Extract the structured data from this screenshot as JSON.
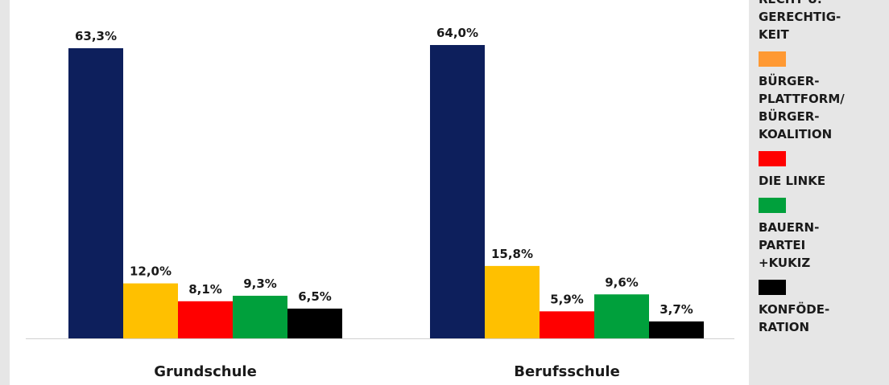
{
  "chart_data": {
    "type": "bar",
    "categories": [
      "Grundschule",
      "Berufsschule"
    ],
    "series": [
      {
        "name": "RECHT U. GERECHTIG-KEIT",
        "color": "#0d1f5c",
        "values": [
          63.3,
          64.0
        ],
        "labels": [
          "63,3%",
          "64,0%"
        ]
      },
      {
        "name": "BÜRGER-PLATTFORM/ BÜRGER-KOALITION",
        "color": "#ffc000",
        "values": [
          12.0,
          15.8
        ],
        "labels": [
          "12,0%",
          "15,8%"
        ]
      },
      {
        "name": "DIE LINKE",
        "color": "#ff0000",
        "values": [
          8.1,
          5.9
        ],
        "labels": [
          "8,1%",
          "5,9%"
        ]
      },
      {
        "name": "BAUERN-PARTEI +KUKIZ",
        "color": "#00a03c",
        "values": [
          9.3,
          9.6
        ],
        "labels": [
          "9,3%",
          "9,6%"
        ]
      },
      {
        "name": "KONFÖDE-RATION",
        "color": "#000000",
        "values": [
          6.5,
          3.7
        ],
        "labels": [
          "6,5%",
          "3,7%"
        ]
      }
    ],
    "ylim": [
      0,
      70
    ],
    "grid": false,
    "legend_position": "right"
  },
  "legend": [
    {
      "text": "RECHT U.\nGERECHTIG-\nKEIT",
      "color": "#0d1f5c",
      "show_swatch": false
    },
    {
      "text": "BÜRGER-\nPLATTFORM/\nBÜRGER-\nKOALITION",
      "color": "#ff9933",
      "show_swatch": true
    },
    {
      "text": "DIE LINKE",
      "color": "#ff0000",
      "show_swatch": true
    },
    {
      "text": "BAUERN-\nPARTEI\n+KUKIZ",
      "color": "#00a03c",
      "show_swatch": true
    },
    {
      "text": "KONFÖDE-\nRATION",
      "color": "#000000",
      "show_swatch": true
    }
  ]
}
